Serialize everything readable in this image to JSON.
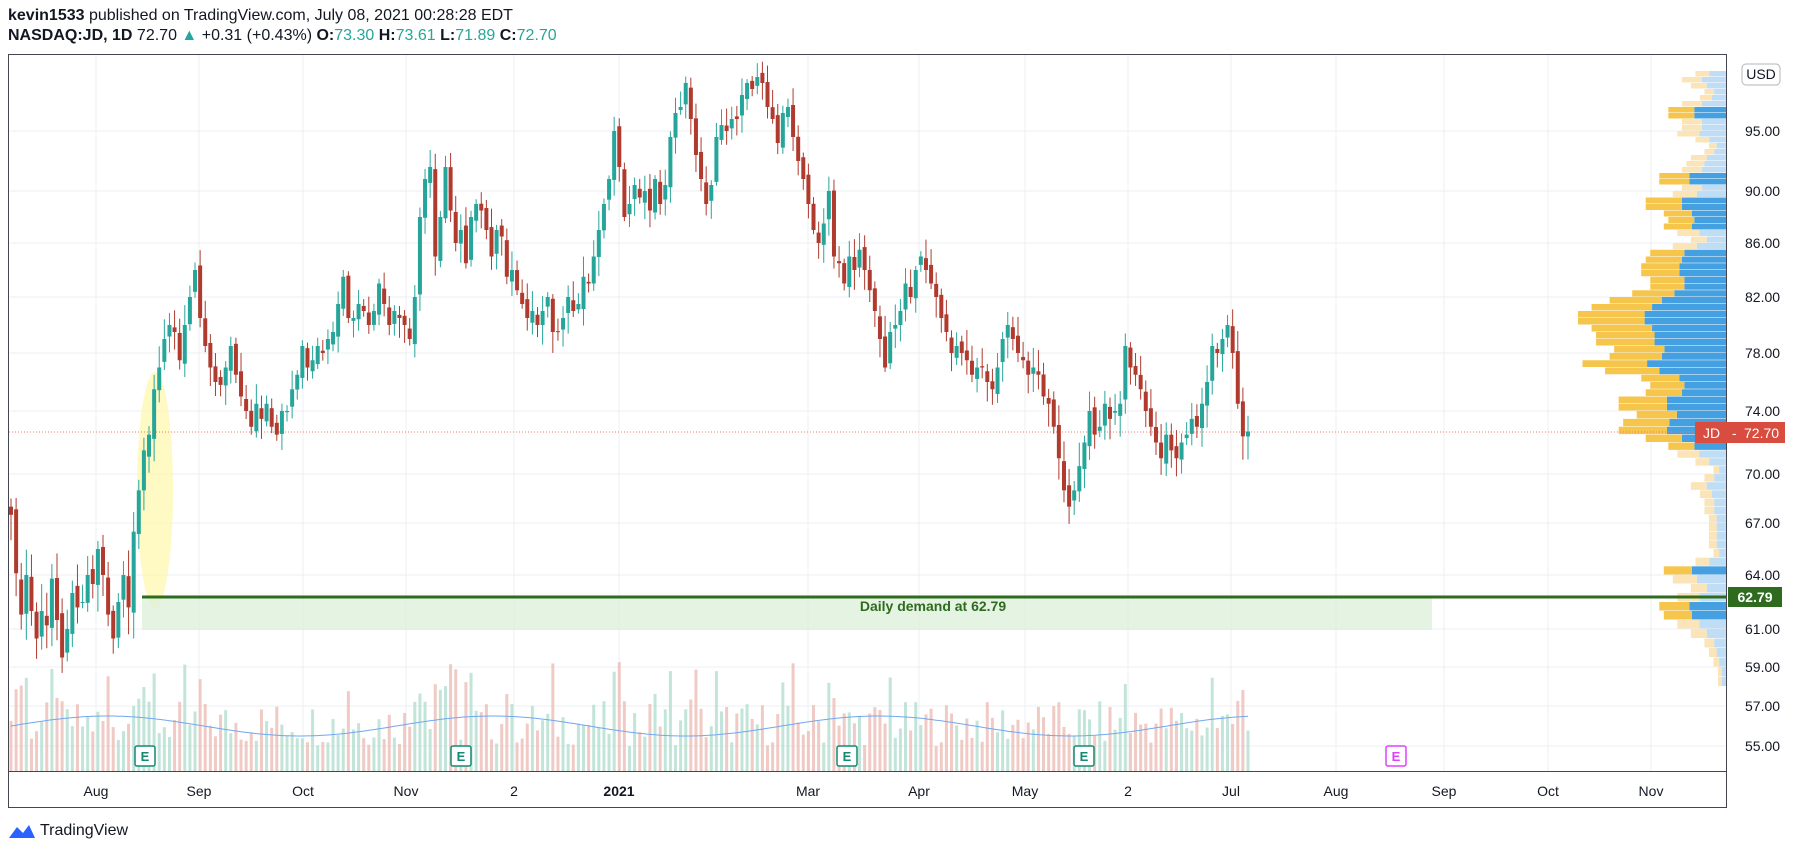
{
  "header": {
    "author": "kevin1533",
    "published_text": "published on TradingView.com, July 08, 2021 00:28:28 EDT",
    "symbol": "NASDAQ:JD, 1D",
    "last": "72.70",
    "change": "+0.31 (+0.43%)",
    "o_label": "O:",
    "o_value": "73.30",
    "h_label": "H:",
    "h_value": "73.61",
    "l_label": "L:",
    "l_value": "71.89",
    "c_label": "C:",
    "c_value": "72.70"
  },
  "footer": {
    "brand": "TradingView"
  },
  "colors": {
    "up": "#26a69a",
    "down": "#b03a2e",
    "demand_line": "#2e6b1e",
    "demand_zone": "#dcefd9",
    "price_line": "#f27b6b",
    "highlight": "#fff59d",
    "vp_up": "#3b9be0",
    "vp_down": "#f5c242"
  },
  "chart_data": {
    "type": "candlestick",
    "symbol": "NASDAQ:JD",
    "interval": "1D",
    "currency": "USD",
    "x_ticks": [
      "Aug",
      "Sep",
      "Oct",
      "Nov",
      "2",
      "2021",
      "Mar",
      "Apr",
      "May",
      "2",
      "Jul",
      "Aug",
      "Sep",
      "Oct",
      "Nov"
    ],
    "y_ticks": [
      "95.00",
      "90.00",
      "86.00",
      "82.00",
      "78.00",
      "74.00",
      "70.00",
      "67.00",
      "64.00",
      "61.00",
      "59.00",
      "57.00",
      "55.00"
    ],
    "ylim": [
      54,
      100
    ],
    "last_price": {
      "ticker": "JD",
      "value": "72.70"
    },
    "demand": {
      "value": "62.79",
      "label": "Daily demand at 62.79"
    },
    "earnings_markers": [
      "E",
      "E",
      "E",
      "E",
      "E"
    ],
    "closes": [
      67.5,
      64.1,
      61.8,
      64.0,
      62.0,
      60.5,
      62.0,
      61.2,
      63.8,
      61.5,
      59.5,
      61.0,
      63.0,
      62.2,
      62.5,
      64.0,
      63.5,
      65.5,
      64.0,
      61.8,
      60.5,
      62.5,
      64.0,
      62.2,
      66.5,
      69.0,
      71.5,
      72.5,
      75.5,
      77.0,
      79.0,
      80.0,
      79.5,
      77.5,
      80.0,
      82.0,
      84.0,
      80.5,
      78.5,
      77.0,
      76.0,
      75.8,
      77.0,
      78.5,
      76.5,
      75.0,
      74.0,
      73.0,
      74.5,
      73.5,
      74.5,
      73.0,
      72.5,
      74.0,
      74.0,
      75.5,
      76.5,
      78.5,
      77.0,
      77.5,
      78.5,
      78.0,
      79.0,
      79.5,
      81.5,
      83.5,
      80.5,
      80.5,
      81.5,
      81.0,
      80.0,
      81.0,
      83.0,
      81.5,
      80.0,
      81.0,
      80.5,
      80.0,
      79.0,
      82.0,
      88.0,
      91.0,
      92.0,
      85.0,
      88.0,
      92.0,
      88.5,
      86.0,
      87.0,
      84.5,
      88.0,
      89.0,
      88.5,
      87.0,
      85.0,
      87.0,
      86.5,
      83.5,
      84.0,
      82.5,
      81.5,
      80.5,
      81.0,
      80.0,
      81.0,
      82.0,
      79.5,
      79.5,
      80.5,
      82.0,
      81.0,
      81.5,
      83.5,
      83.0,
      85.0,
      87.0,
      89.0,
      91.0,
      95.0,
      92.0,
      88.0,
      89.0,
      90.5,
      89.5,
      90.0,
      88.5,
      91.0,
      89.0,
      90.5,
      94.5,
      96.5,
      97.0,
      99.0,
      96.0,
      93.0,
      91.0,
      89.0,
      90.5,
      94.5,
      95.5,
      95.0,
      96.0,
      96.0,
      98.0,
      99.0,
      98.5,
      99.5,
      99.0,
      97.0,
      96.0,
      94.0,
      96.5,
      97.0,
      94.5,
      92.5,
      91.0,
      89.0,
      87.0,
      86.0,
      87.5,
      90.0,
      85.0,
      84.5,
      83.0,
      85.0,
      84.0,
      85.5,
      84.0,
      82.5,
      81.0,
      79.0,
      77.0,
      79.5,
      80.0,
      81.0,
      83.0,
      82.0,
      84.0,
      85.0,
      84.0,
      83.0,
      82.0,
      80.5,
      79.5,
      78.0,
      78.5,
      78.0,
      77.5,
      76.5,
      77.0,
      77.0,
      76.0,
      75.5,
      77.0,
      79.0,
      80.0,
      79.0,
      78.0,
      77.5,
      76.5,
      77.0,
      76.5,
      75.0,
      74.5,
      73.0,
      71.0,
      69.0,
      68.0,
      69.0,
      70.5,
      72.0,
      74.0,
      72.5,
      73.0,
      74.5,
      73.5,
      74.0,
      74.5,
      78.5,
      77.0,
      76.5,
      75.5,
      74.0,
      73.0,
      72.0,
      71.0,
      72.5,
      71.5,
      71.0,
      72.0,
      72.5,
      73.5,
      73.0,
      74.5,
      76.0,
      78.5,
      78.0,
      79.0,
      80.0,
      78.0,
      74.5,
      72.39,
      72.7
    ]
  }
}
